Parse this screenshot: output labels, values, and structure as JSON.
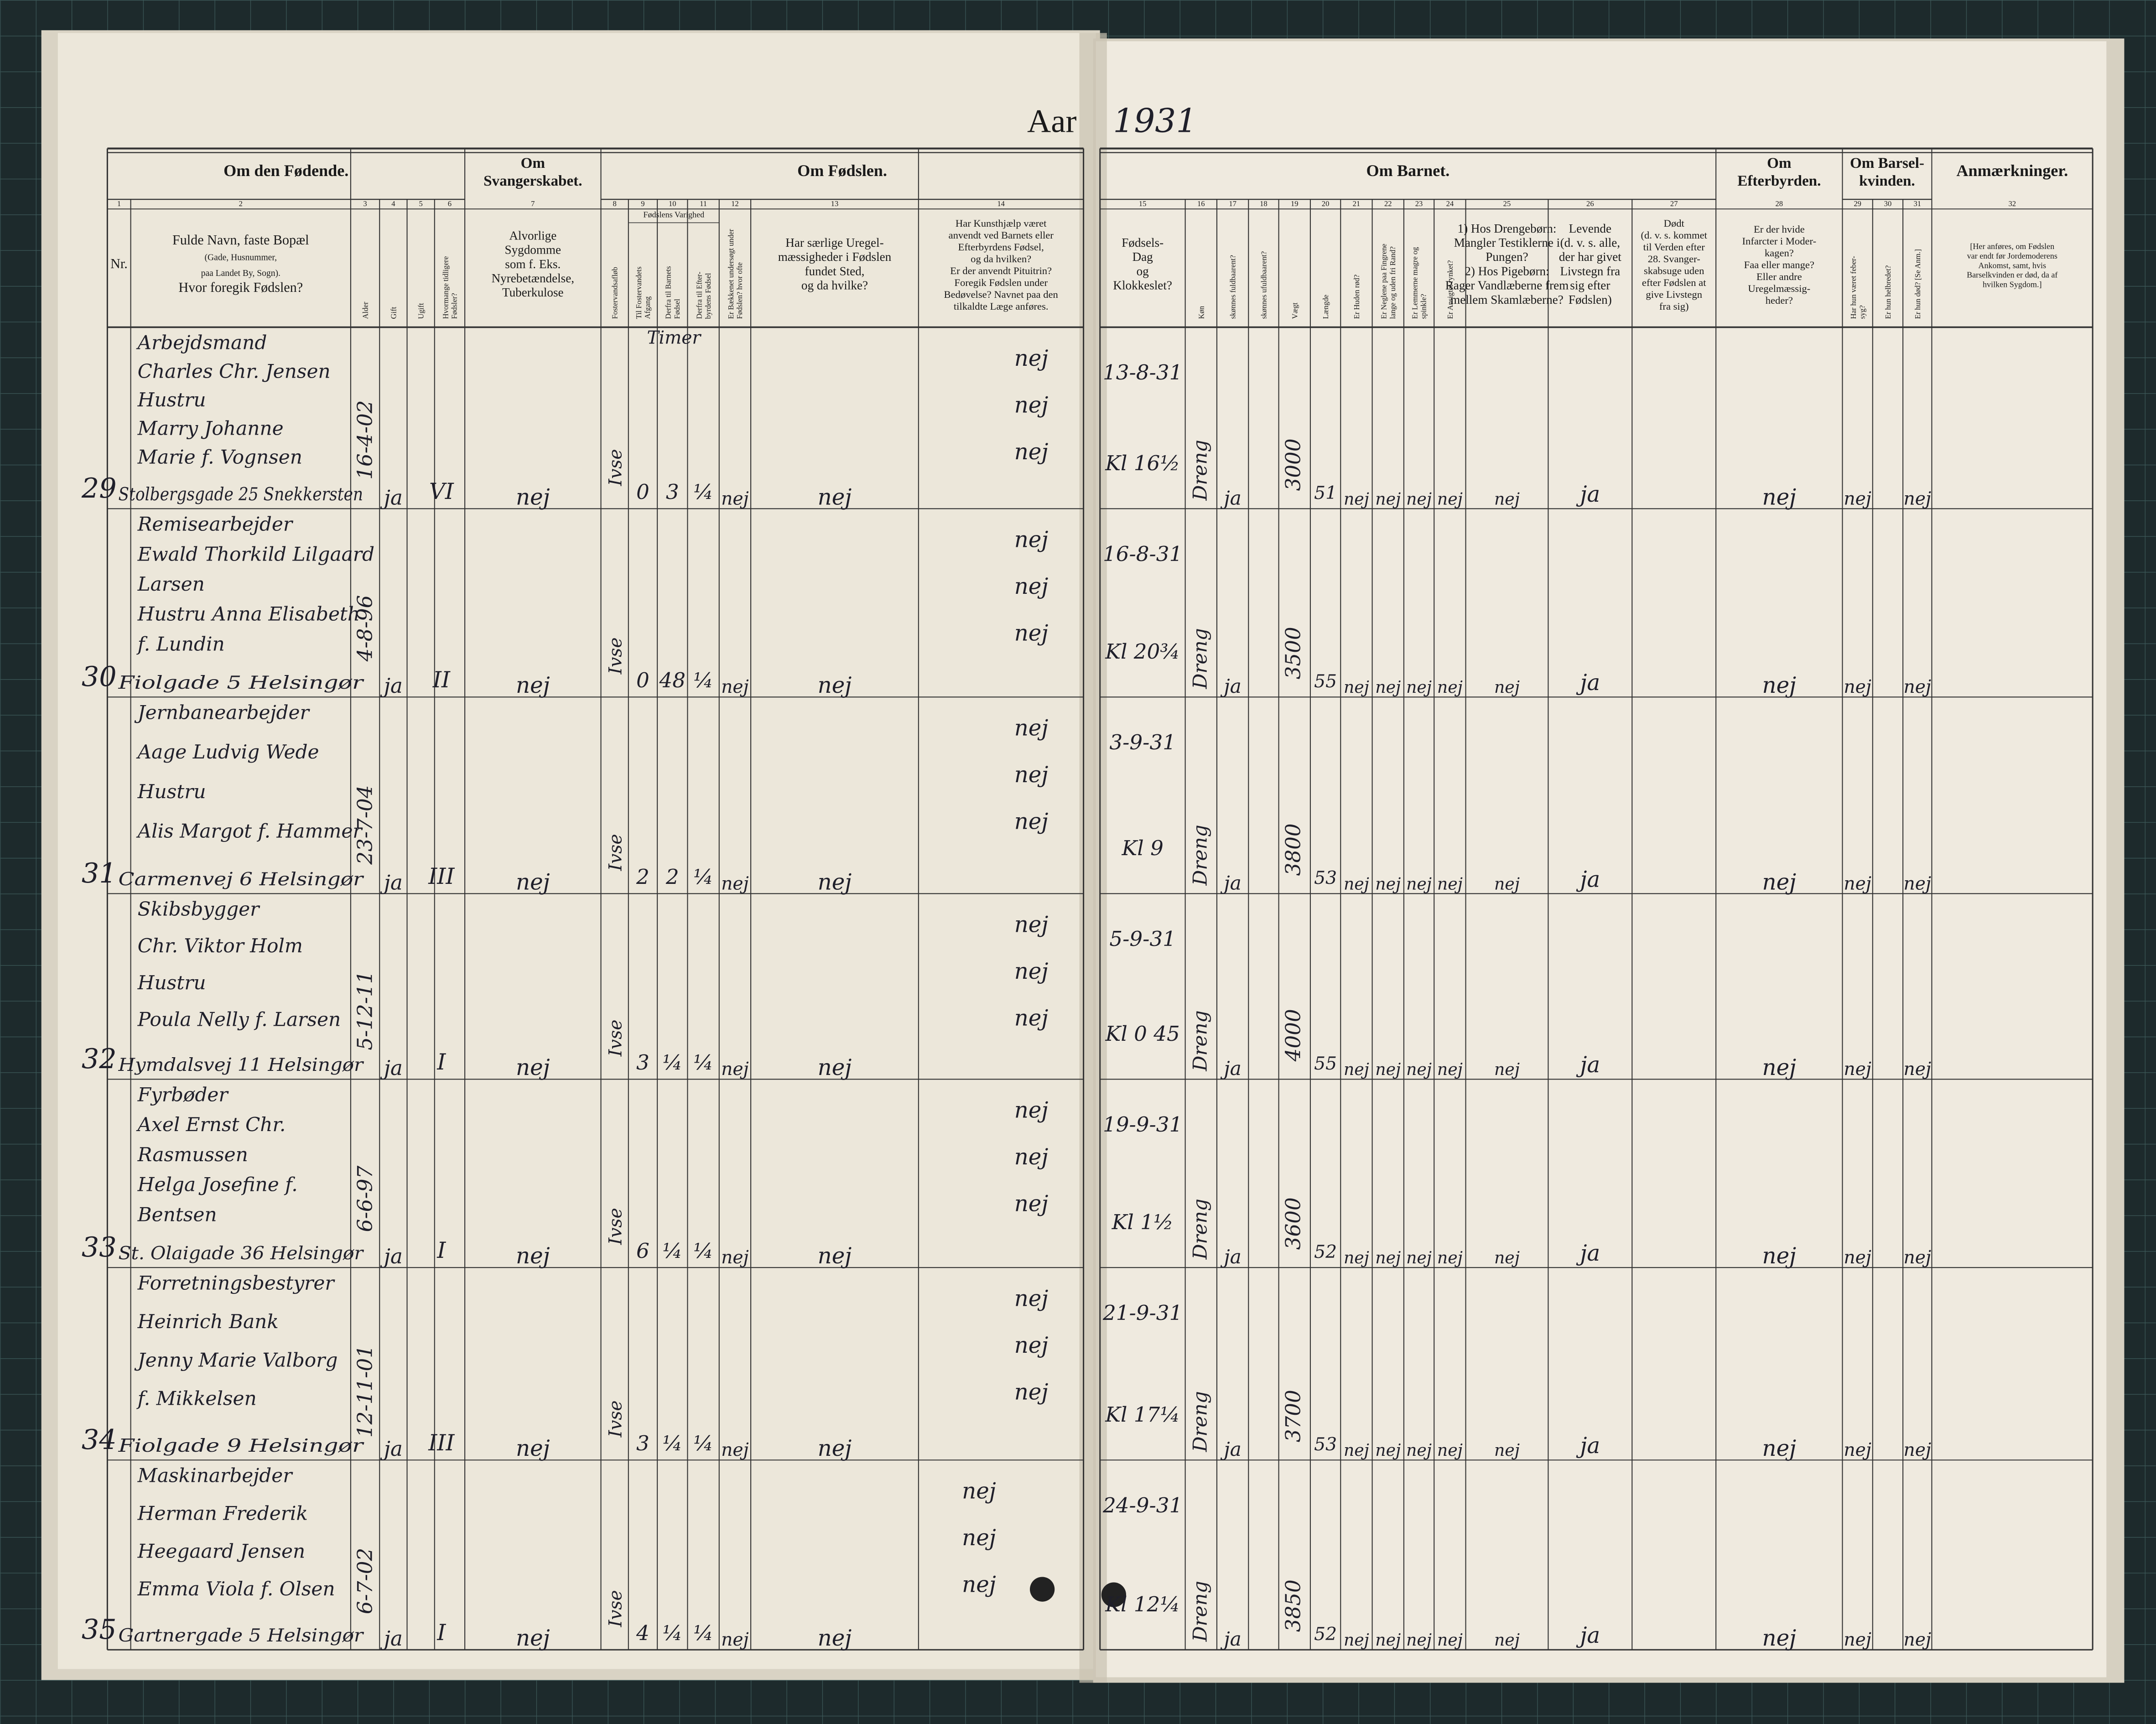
{
  "header": {
    "aar": "Aar",
    "year": "1931"
  },
  "groups": [
    {
      "lines": [
        "Om den Fødende."
      ]
    },
    {
      "lines": [
        "Om",
        "Svangerskabet."
      ]
    },
    {
      "lines": [
        "Om Fødslen."
      ]
    },
    {
      "lines": [
        "Om Barnet."
      ]
    },
    {
      "lines": [
        "Om",
        "Efterbyrden."
      ]
    },
    {
      "lines": [
        "Om Barsel-",
        "kvinden."
      ]
    },
    {
      "lines": [
        "Anmærkninger."
      ]
    }
  ],
  "subgroup": "Fødslens Varighed",
  "duration_unit": "Timer",
  "columns": [
    {
      "n": "1",
      "lines": [
        "Nr."
      ]
    },
    {
      "n": "2",
      "lines": [
        "Fulde Navn, faste Bopæl",
        "(Gade, Husnummer,",
        "paa Landet By, Sogn).",
        "Hvor foregik Fødslen?"
      ]
    },
    {
      "n": "3",
      "lines": [
        "Alder"
      ]
    },
    {
      "n": "4",
      "lines": [
        "Gift"
      ]
    },
    {
      "n": "5",
      "lines": [
        "Ugift"
      ]
    },
    {
      "n": "6",
      "lines": [
        "Hvormange tidligere",
        "Fødsler?"
      ]
    },
    {
      "n": "7",
      "lines": [
        "Alvorlige",
        "Sygdomme",
        "som f. Eks.",
        "Nyrebetændelse,",
        "Tuberkulose"
      ]
    },
    {
      "n": "8",
      "lines": [
        "Fostervandsafløb"
      ]
    },
    {
      "n": "9",
      "lines": [
        "Til Fostervandets",
        "Afgang"
      ]
    },
    {
      "n": "10",
      "lines": [
        "Derfra til Barnets",
        "Fødsel"
      ]
    },
    {
      "n": "11",
      "lines": [
        "Derfra til Efter-",
        "byrdens Fødsel"
      ]
    },
    {
      "n": "12",
      "lines": [
        "Er Bækkenet undersøgt under",
        "Fødslen? hvor ofte"
      ]
    },
    {
      "n": "13",
      "lines": [
        "Har særlige Uregel-",
        "mæssigheder i Fødslen",
        "fundet Sted,",
        "og da hvilke?"
      ]
    },
    {
      "n": "14",
      "lines": [
        "Har Kunsthjælp været",
        "anvendt ved Barnets eller",
        "Efterbyrdens Fødsel,",
        "og da hvilken?",
        "Er der anvendt Pituitrin?",
        "Foregik Fødslen under",
        "Bedøvelse? Navnet paa den",
        "tilkaldte Læge anføres."
      ]
    },
    {
      "n": "15",
      "lines": [
        "Fødsels-",
        "Dag",
        "og",
        "Klokkeslet?"
      ]
    },
    {
      "n": "16",
      "lines": [
        "Køn"
      ]
    },
    {
      "n": "17",
      "lines": [
        "skønnes fuldbaarent?"
      ]
    },
    {
      "n": "18",
      "lines": [
        "skønnes ufuldbaarent?"
      ]
    },
    {
      "n": "19",
      "lines": [
        "Vægt"
      ]
    },
    {
      "n": "20",
      "lines": [
        "Længde"
      ]
    },
    {
      "n": "21",
      "lines": [
        "Er Huden rød?"
      ]
    },
    {
      "n": "22",
      "lines": [
        "Er Neglene paa Fingrene",
        "lange og uden fri Rand?"
      ]
    },
    {
      "n": "23",
      "lines": [
        "Er Lemmerne magre og",
        "spinkle?"
      ]
    },
    {
      "n": "24",
      "lines": [
        "Er Ansigtet rynket?"
      ]
    },
    {
      "n": "25",
      "lines": [
        "1) Hos Drengebørn:",
        "Mangler Testiklerne i",
        "Pungen?",
        "2) Hos Pigebørn:",
        "Rager Vandlæberne frem",
        "mellem Skamlæberne?"
      ]
    },
    {
      "n": "26",
      "lines": [
        "Levende",
        "(d. v. s. alle,",
        "der har givet",
        "Livstegn fra",
        "sig efter",
        "Fødslen)"
      ]
    },
    {
      "n": "27",
      "lines": [
        "Dødt",
        "(d. v. s. kommet",
        "til Verden efter",
        "28. Svanger-",
        "skabsuge uden",
        "efter Fødslen at",
        "give Livstegn",
        "fra sig)"
      ]
    },
    {
      "n": "28",
      "lines": [
        "Er der hvide",
        "Infarcter i Moder-",
        "kagen?",
        "Faa eller mange?",
        "Eller andre",
        "Uregelmæssig-",
        "heder?"
      ]
    },
    {
      "n": "29",
      "lines": [
        "Har hun været feber-",
        "syg?"
      ]
    },
    {
      "n": "30",
      "lines": [
        "Er hun helbredet?"
      ]
    },
    {
      "n": "31",
      "lines": [
        "Er hun død? [Se Anm.]"
      ]
    },
    {
      "n": "32",
      "lines": [
        "[Her anføres, om Fødslen",
        "var endt før Jordemoderens",
        "Ankomst, samt, hvis",
        "Barselkvinden er død, da af",
        "hvilken Sygdom.]"
      ]
    }
  ],
  "rows": [
    {
      "nr": "29",
      "lines": [
        "Arbejdsmand",
        "Charles Chr. Jensen",
        "Hustru",
        "Marry Johanne",
        "Marie f. Vognsen"
      ],
      "address": "Stolbergsgade 25 Snekkersten",
      "born": "16-4-02",
      "gift": "ja",
      "previous": "VI",
      "illness": "nej",
      "fostervand": "Ivse",
      "d9": "0",
      "d10": "3",
      "d11": "¼",
      "c12": "nej",
      "c13": "nej",
      "c14": [
        "nej",
        "nej",
        "nej"
      ],
      "date": "13-8-31",
      "time": "Kl 16½",
      "sex": "Dreng",
      "full": "ja",
      "weight": "3000",
      "length": "51",
      "signs": [
        "nej",
        "nej",
        "nej",
        "nej",
        "nej"
      ],
      "alive": "ja",
      "c28": "nej",
      "c29": "nej",
      "c31": "nej"
    },
    {
      "nr": "30",
      "lines": [
        "Remisearbejder",
        "Ewald Thorkild Lilgaard",
        "Larsen",
        "Hustru Anna Elisabeth",
        "f. Lundin"
      ],
      "address": "Fiolgade 5 Helsingør",
      "born": "4-8-96",
      "gift": "ja",
      "previous": "II",
      "illness": "nej",
      "fostervand": "Ivse",
      "d9": "0",
      "d10": "48",
      "d11": "¼",
      "c12": "nej",
      "c13": "nej",
      "c14": [
        "nej",
        "nej",
        "nej"
      ],
      "date": "16-8-31",
      "time": "Kl 20¾",
      "sex": "Dreng",
      "full": "ja",
      "weight": "3500",
      "length": "55",
      "signs": [
        "nej",
        "nej",
        "nej",
        "nej",
        "nej"
      ],
      "alive": "ja",
      "c28": "nej",
      "c29": "nej",
      "c31": "nej"
    },
    {
      "nr": "31",
      "lines": [
        "Jernbanearbejder",
        "Aage Ludvig Wede",
        "Hustru",
        "Alis Margot f. Hammer"
      ],
      "address": "Carmenvej 6 Helsingør",
      "born": "23-7-04",
      "gift": "ja",
      "previous": "III",
      "illness": "nej",
      "fostervand": "Ivse",
      "d9": "2",
      "d10": "2",
      "d11": "¼",
      "c12": "nej",
      "c13": "nej",
      "c14": [
        "nej",
        "nej",
        "nej"
      ],
      "date": "3-9-31",
      "time": "Kl 9",
      "sex": "Dreng",
      "full": "ja",
      "weight": "3800",
      "length": "53",
      "signs": [
        "nej",
        "nej",
        "nej",
        "nej",
        "nej"
      ],
      "alive": "ja",
      "c28": "nej",
      "c29": "nej",
      "c31": "nej"
    },
    {
      "nr": "32",
      "lines": [
        "Skibsbygger",
        "Chr. Viktor Holm",
        "Hustru",
        "Poula Nelly f. Larsen"
      ],
      "address": "Hymdalsvej 11 Helsingør",
      "born": "5-12-11",
      "gift": "ja",
      "previous": "I",
      "illness": "nej",
      "fostervand": "Ivse",
      "d9": "3",
      "d10": "¼",
      "d11": "¼",
      "c12": "nej",
      "c13": "nej",
      "c14": [
        "nej",
        "nej",
        "nej"
      ],
      "date": "5-9-31",
      "time": "Kl 0 45",
      "sex": "Dreng",
      "full": "ja",
      "weight": "4000",
      "length": "55",
      "signs": [
        "nej",
        "nej",
        "nej",
        "nej",
        "nej"
      ],
      "alive": "ja",
      "c28": "nej",
      "c29": "nej",
      "c31": "nej"
    },
    {
      "nr": "33",
      "lines": [
        "Fyrbøder",
        "Axel Ernst Chr.",
        "Rasmussen",
        "Helga Josefine f.",
        "Bentsen"
      ],
      "address": "St. Olaigade 36 Helsingør",
      "born": "6-6-97",
      "gift": "ja",
      "previous": "I",
      "illness": "nej",
      "fostervand": "Ivse",
      "d9": "6",
      "d10": "¼",
      "d11": "¼",
      "c12": "nej",
      "c13": "nej",
      "c14": [
        "nej",
        "nej",
        "nej"
      ],
      "date": "19-9-31",
      "time": "Kl 1½",
      "sex": "Dreng",
      "full": "ja",
      "weight": "3600",
      "length": "52",
      "signs": [
        "nej",
        "nej",
        "nej",
        "nej",
        "nej"
      ],
      "alive": "ja",
      "c28": "nej",
      "c29": "nej",
      "c31": "nej"
    },
    {
      "nr": "34",
      "lines": [
        "Forretningsbestyrer",
        "Heinrich Bank",
        "Jenny Marie Valborg",
        "f. Mikkelsen"
      ],
      "address": "Fiolgade 9 Helsingør",
      "born": "12-11-01",
      "gift": "ja",
      "previous": "III",
      "illness": "nej",
      "fostervand": "Ivse",
      "d9": "3",
      "d10": "¼",
      "d11": "¼",
      "c12": "nej",
      "c13": "nej",
      "c14": [
        "nej",
        "nej",
        "nej"
      ],
      "date": "21-9-31",
      "time": "Kl 17¼",
      "sex": "Dreng",
      "full": "ja",
      "weight": "3700",
      "length": "53",
      "signs": [
        "nej",
        "nej",
        "nej",
        "nej",
        "nej"
      ],
      "alive": "ja",
      "c28": "nej",
      "c29": "nej",
      "c31": "nej"
    },
    {
      "nr": "35",
      "lines": [
        "Maskinarbejder",
        "Herman Frederik",
        "Heegaard Jensen",
        "Emma Viola f. Olsen"
      ],
      "address": "Gartnergade 5 Helsingør",
      "born": "6-7-02",
      "gift": "ja",
      "previous": "I",
      "illness": "nej",
      "fostervand": "Ivse",
      "d9": "4",
      "d10": "¼",
      "d11": "¼",
      "c12": "nej",
      "c13": "nej",
      "c14": [
        "nej",
        "nej",
        "nej"
      ],
      "date": "24-9-31",
      "time": "Kl 12¼",
      "sex": "Dreng",
      "full": "ja",
      "weight": "3850",
      "length": "52",
      "signs": [
        "nej",
        "nej",
        "nej",
        "nej",
        "nej"
      ],
      "alive": "ja",
      "c28": "nej",
      "c29": "nej",
      "c31": "nej"
    }
  ]
}
